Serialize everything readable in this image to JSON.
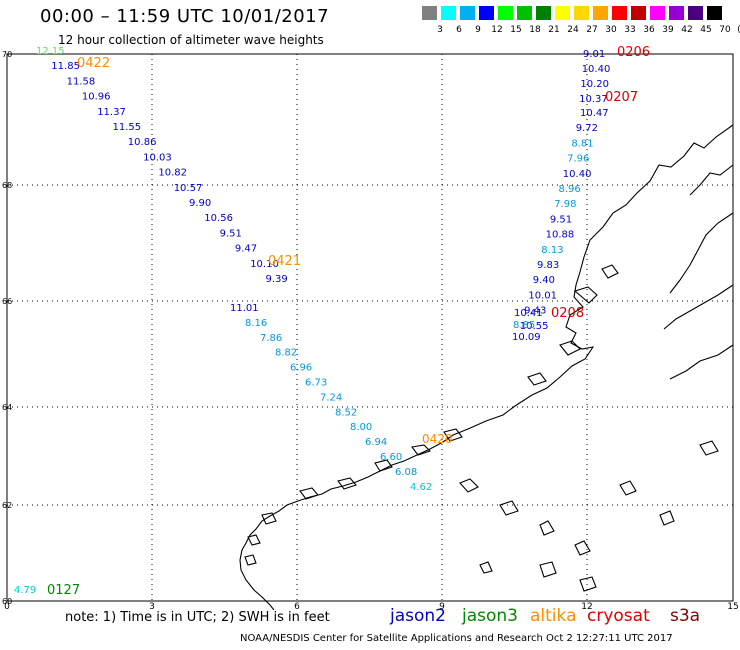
{
  "header": {
    "title": "00:00 – 11:59 UTC 10/01/2017",
    "subtitle": "12 hour collection of altimeter wave heights"
  },
  "color_scale": {
    "labels": [
      "3",
      "6",
      "9",
      "12",
      "15",
      "18",
      "21",
      "24",
      "27",
      "30",
      "33",
      "36",
      "39",
      "42",
      "45",
      "70",
      "(ft)"
    ],
    "colors": [
      "#808080",
      "#00ffff",
      "#00b0f0",
      "#0000ff",
      "#00ff00",
      "#00c000",
      "#008000",
      "#ffff00",
      "#ffd700",
      "#ffa500",
      "#ff0000",
      "#c00000",
      "#ff00ff",
      "#9400d3",
      "#4b0082",
      "#000000"
    ]
  },
  "axes": {
    "x_ticks": [
      "0",
      "3",
      "6",
      "9",
      "12",
      "15"
    ],
    "y_ticks": [
      "70",
      "68",
      "66",
      "64",
      "62",
      "60"
    ],
    "lon_range": [
      0,
      15
    ],
    "lat_range": [
      60,
      70
    ]
  },
  "tracks": [
    {
      "id": "0422",
      "label_color": "#ff8c00",
      "points": [
        {
          "v": "12.15",
          "c": "#66dd66"
        },
        {
          "v": "11.85",
          "c": "#0000cc"
        },
        {
          "v": "11.58",
          "c": "#0000cc"
        },
        {
          "v": "10.96",
          "c": "#0000cc"
        },
        {
          "v": "11.37",
          "c": "#0000cc"
        },
        {
          "v": "11.55",
          "c": "#0000cc"
        },
        {
          "v": "10.86",
          "c": "#0000cc"
        },
        {
          "v": "10.03",
          "c": "#0000cc"
        },
        {
          "v": "10.82",
          "c": "#0000cc"
        },
        {
          "v": "10.57",
          "c": "#0000cc"
        },
        {
          "v": "9.90",
          "c": "#0000cc"
        },
        {
          "v": "10.56",
          "c": "#0000cc"
        },
        {
          "v": "9.51",
          "c": "#0000cc"
        },
        {
          "v": "9.47",
          "c": "#0000cc"
        },
        {
          "v": "10.10",
          "c": "#0000cc"
        },
        {
          "v": "9.39",
          "c": "#0000cc"
        }
      ]
    },
    {
      "id": "0421",
      "label_color": "#ff8c00",
      "points": [
        {
          "v": "11.01",
          "c": "#0000cc"
        },
        {
          "v": "8.16",
          "c": "#0099dd"
        },
        {
          "v": "7.86",
          "c": "#0099dd"
        },
        {
          "v": "8.82",
          "c": "#0099dd"
        },
        {
          "v": "6.96",
          "c": "#0099dd"
        },
        {
          "v": "6.73",
          "c": "#0099dd"
        },
        {
          "v": "7.24",
          "c": "#0099dd"
        },
        {
          "v": "8.52",
          "c": "#0099dd"
        },
        {
          "v": "8.00",
          "c": "#0099dd"
        },
        {
          "v": "6.94",
          "c": "#0099dd"
        },
        {
          "v": "6.60",
          "c": "#0099dd"
        },
        {
          "v": "6.08",
          "c": "#0099dd"
        },
        {
          "v": "4.62",
          "c": "#00cccc"
        }
      ],
      "end_label": "0420"
    },
    {
      "id": "0206",
      "label_color": "#dd0000",
      "points": [
        {
          "v": "9.01",
          "c": "#0000cc"
        },
        {
          "v": "10.40",
          "c": "#0000cc"
        },
        {
          "v": "10.20",
          "c": "#0000cc"
        },
        {
          "v": "10.37",
          "c": "#0000cc"
        }
      ]
    },
    {
      "id": "0207",
      "label_color": "#dd0000",
      "points": [
        {
          "v": "10.47",
          "c": "#0000cc"
        },
        {
          "v": "9.72",
          "c": "#0000cc"
        },
        {
          "v": "8.81",
          "c": "#0099dd"
        },
        {
          "v": "7.96",
          "c": "#0099dd"
        },
        {
          "v": "10.40",
          "c": "#0000cc"
        },
        {
          "v": "8.96",
          "c": "#0099dd"
        },
        {
          "v": "7.98",
          "c": "#0099dd"
        },
        {
          "v": "9.51",
          "c": "#0000cc"
        },
        {
          "v": "10.88",
          "c": "#0000cc"
        },
        {
          "v": "8.13",
          "c": "#0099dd"
        },
        {
          "v": "9.83",
          "c": "#0000cc"
        },
        {
          "v": "9.40",
          "c": "#0000cc"
        },
        {
          "v": "10.01",
          "c": "#0000cc"
        },
        {
          "v": "9.43",
          "c": "#0000cc"
        },
        {
          "v": "10.55",
          "c": "#0000cc"
        }
      ]
    },
    {
      "id": "0208",
      "label_color": "#dd0000",
      "points": [
        {
          "v": "10.41",
          "c": "#0000cc"
        },
        {
          "v": "8.85",
          "c": "#0099dd"
        },
        {
          "v": "10.09",
          "c": "#0000cc"
        }
      ]
    },
    {
      "id": "0127",
      "label_color": "#008800",
      "points": [
        {
          "v": "4.79",
          "c": "#00cccc"
        }
      ]
    }
  ],
  "footer": {
    "note": "note: 1) Time is in UTC; 2) SWH is in feet",
    "satellites": [
      {
        "name": "jason2",
        "color": "#0000cc"
      },
      {
        "name": "jason3",
        "color": "#008800"
      },
      {
        "name": "altika",
        "color": "#ff8c00"
      },
      {
        "name": "cryosat",
        "color": "#dd0000"
      },
      {
        "name": "s3a",
        "color": "#880000"
      }
    ],
    "credit": "NOAA/NESDIS Center for Satellite Applications and Research    Oct  2 12:27:11 UTC 2017"
  }
}
